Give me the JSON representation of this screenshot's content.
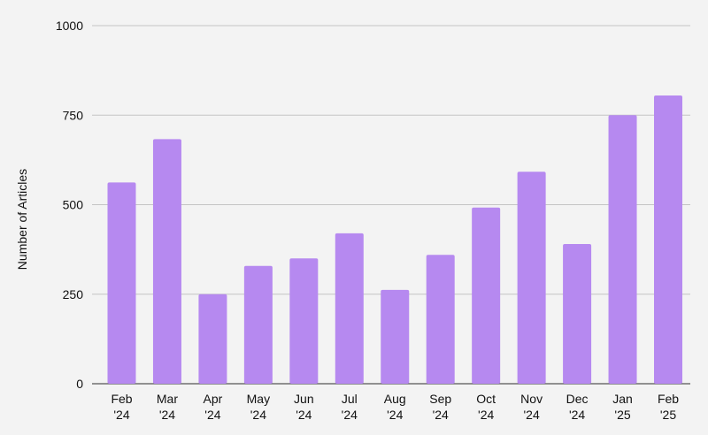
{
  "chart_data": {
    "type": "bar",
    "ylabel": "Number of Articles",
    "xlabel": "",
    "ylim": [
      0,
      1000
    ],
    "yticks": [
      "0",
      "250",
      "500",
      "750",
      "1000"
    ],
    "grid": true,
    "bar_color": "#b689f0",
    "categories": [
      [
        "Feb",
        "'24"
      ],
      [
        "Mar",
        "'24"
      ],
      [
        "Apr",
        "'24"
      ],
      [
        "May",
        "'24"
      ],
      [
        "Jun",
        "'24"
      ],
      [
        "Jul",
        "'24"
      ],
      [
        "Aug",
        "'24"
      ],
      [
        "Sep",
        "'24"
      ],
      [
        "Oct",
        "'24"
      ],
      [
        "Nov",
        "'24"
      ],
      [
        "Dec",
        "'24"
      ],
      [
        "Jan",
        "'25"
      ],
      [
        "Feb",
        "'25"
      ]
    ],
    "values": [
      562,
      683,
      250,
      329,
      350,
      420,
      262,
      360,
      492,
      592,
      390,
      750,
      805
    ]
  }
}
